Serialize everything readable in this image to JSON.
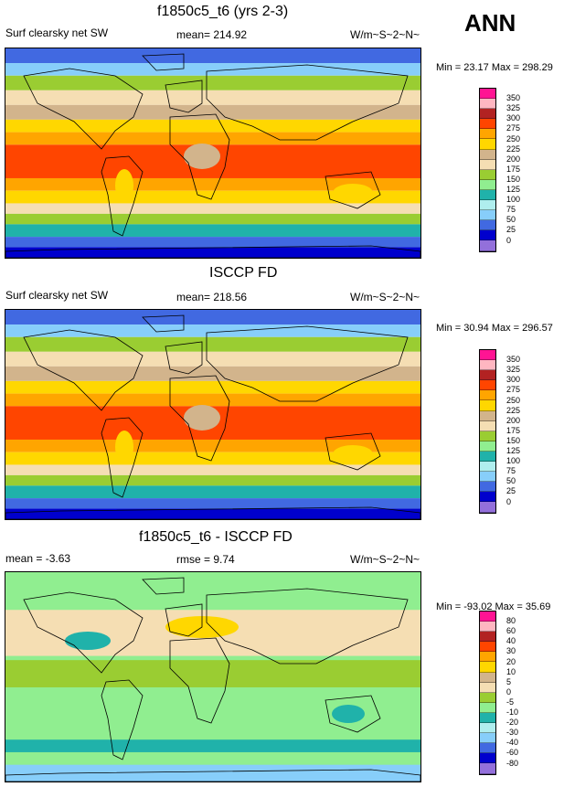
{
  "season": "ANN",
  "panels": [
    {
      "title": "f1850c5_t6 (yrs 2-3)",
      "left": "Surf clearsky net SW",
      "mid": "mean= 214.92",
      "right": "W/m~S~2~N~",
      "minmax": "Min =  23.17 Max = 298.29",
      "labels": [
        "350",
        "325",
        "300",
        "275",
        "250",
        "225",
        "200",
        "175",
        "150",
        "125",
        "100",
        "75",
        "50",
        "25",
        "0"
      ]
    },
    {
      "title": "ISCCP FD",
      "left": "Surf clearsky net SW",
      "mid": "mean= 218.56",
      "right": "W/m~S~2~N~",
      "minmax": "Min =  30.94 Max = 296.57",
      "labels": [
        "350",
        "325",
        "300",
        "275",
        "250",
        "225",
        "200",
        "175",
        "150",
        "125",
        "100",
        "75",
        "50",
        "25",
        "0"
      ]
    },
    {
      "title": "f1850c5_t6 - ISCCP FD",
      "left": "mean =  -3.63",
      "mid": "rmse =   9.74",
      "right": "W/m~S~2~N~",
      "minmax": "Min = -93.02 Max =  35.69",
      "labels": [
        "80",
        "60",
        "40",
        "30",
        "20",
        "10",
        "5",
        "0",
        "-5",
        "-10",
        "-20",
        "-30",
        "-40",
        "-60",
        "-80"
      ]
    }
  ],
  "colorbar_colors": [
    "#ff1493",
    "#ffb6c1",
    "#b22222",
    "#ff4500",
    "#ffa500",
    "#ffd700",
    "#d2b48c",
    "#f5deb3",
    "#9acd32",
    "#90ee90",
    "#20b2aa",
    "#afeeee",
    "#87cefa",
    "#4169e1",
    "#0000cd",
    "#9370db"
  ],
  "chart_data": [
    {
      "type": "heatmap",
      "title": "f1850c5_t6 (yrs 2-3)",
      "variable": "Surf clearsky net SW",
      "units": "W/m~S~2~N~",
      "mean": 214.92,
      "min": 23.17,
      "max": 298.29,
      "levels": [
        0,
        25,
        50,
        75,
        100,
        125,
        150,
        175,
        200,
        225,
        250,
        275,
        300,
        325,
        350
      ]
    },
    {
      "type": "heatmap",
      "title": "ISCCP FD",
      "variable": "Surf clearsky net SW",
      "units": "W/m~S~2~N~",
      "mean": 218.56,
      "min": 30.94,
      "max": 296.57,
      "levels": [
        0,
        25,
        50,
        75,
        100,
        125,
        150,
        175,
        200,
        225,
        250,
        275,
        300,
        325,
        350
      ]
    },
    {
      "type": "heatmap",
      "title": "f1850c5_t6 - ISCCP FD",
      "units": "W/m~S~2~N~",
      "mean": -3.63,
      "rmse": 9.74,
      "min": -93.02,
      "max": 35.69,
      "levels": [
        -80,
        -60,
        -40,
        -30,
        -20,
        -10,
        -5,
        0,
        5,
        10,
        20,
        30,
        40,
        60,
        80
      ]
    }
  ]
}
